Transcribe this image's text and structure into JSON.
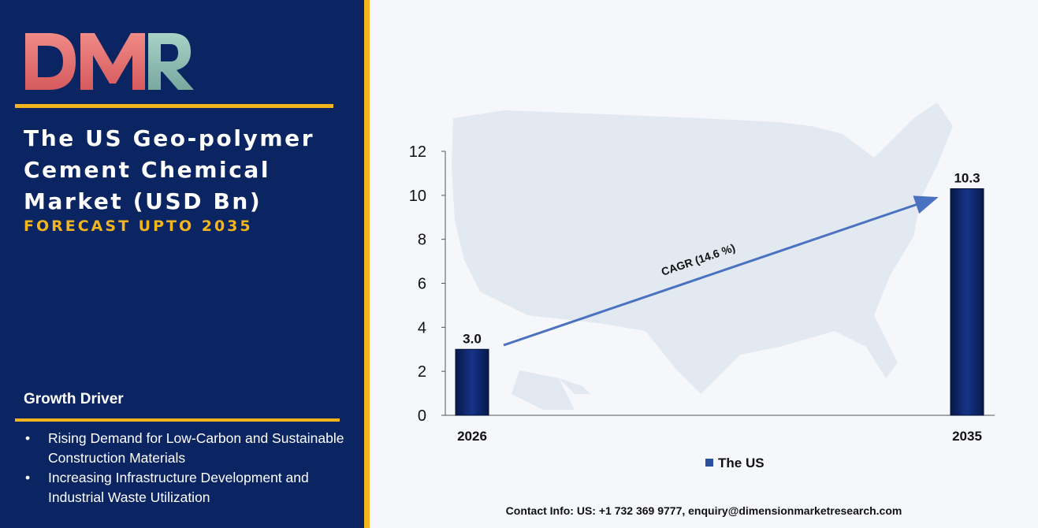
{
  "logo": {
    "text": "DMR",
    "colors": {
      "d_m": "#e06868",
      "r": "#8bbab0"
    }
  },
  "title": "The US Geo-polymer Cement Chemical Market (USD Bn)",
  "subtitle": "FORECAST UPTO 2035",
  "growth_driver": {
    "heading": "Growth Driver",
    "items": [
      "Rising Demand for Low-Carbon and Sustainable Construction Materials",
      "Increasing Infrastructure Development and Industrial Waste Utilization"
    ]
  },
  "contact": "Contact Info: US: +1 732 369 9777, enquiry@dimensionmarketresearch.com",
  "colors": {
    "panel": "#0b2462",
    "accent": "#f2b51d",
    "bar": "#0b2462",
    "arrow": "#4a72c0"
  },
  "chart_data": {
    "type": "bar",
    "categories": [
      "2026",
      "2035"
    ],
    "series": [
      {
        "name": "The US",
        "values": [
          3.0,
          10.3
        ]
      }
    ],
    "data_labels": [
      "3.0",
      "10.3"
    ],
    "ylim": [
      0,
      12
    ],
    "yticks": [
      0,
      2,
      4,
      6,
      8,
      10,
      12
    ],
    "annotation": "CAGR (14.6 %)",
    "legend_position": "bottom",
    "grid": false,
    "background": "US map"
  }
}
